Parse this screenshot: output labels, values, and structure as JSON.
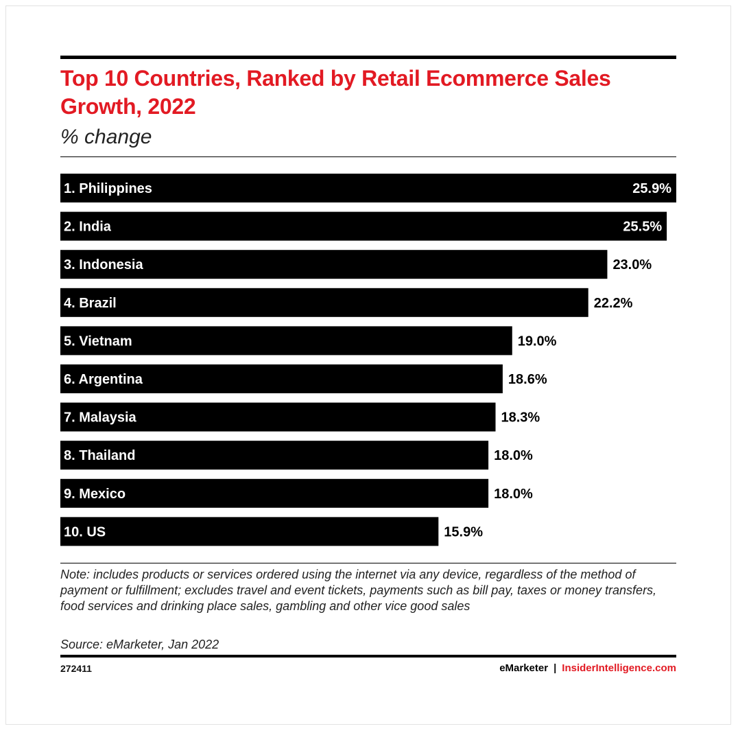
{
  "header": {
    "title": "Top 10 Countries, Ranked by Retail Ecommerce Sales Growth, 2022",
    "subtitle": "% change"
  },
  "chart_data": {
    "type": "bar",
    "orientation": "horizontal",
    "title": "Top 10 Countries, Ranked by Retail Ecommerce Sales Growth, 2022",
    "subtitle": "% change",
    "categories": [
      "1. Philippines",
      "2. India",
      "3. Indonesia",
      "4. Brazil",
      "5. Vietnam",
      "6. Argentina",
      "7. Malaysia",
      "8. Thailand",
      "9. Mexico",
      "10. US"
    ],
    "values": [
      25.9,
      25.5,
      23.0,
      22.2,
      19.0,
      18.6,
      18.3,
      18.0,
      18.0,
      15.9
    ],
    "value_labels": [
      "25.9%",
      "25.5%",
      "23.0%",
      "22.2%",
      "19.0%",
      "18.6%",
      "18.3%",
      "18.0%",
      "18.0%",
      "15.9%"
    ],
    "xlim": [
      0,
      25.9
    ],
    "bar_color": "#000000",
    "grid": false,
    "legend": "none"
  },
  "footer": {
    "note": "Note: includes products or services ordered using the internet via any device, regardless of the method of payment or fulfillment; excludes travel and event tickets, payments such as bill pay, taxes or money transfers, food services and drinking place sales, gambling and other vice good sales",
    "source": "Source: eMarketer, Jan 2022",
    "chart_id": "272411",
    "brand_emarketer": "eMarketer",
    "brand_separator": "|",
    "brand_insider": "InsiderIntelligence.com"
  },
  "colors": {
    "title": "#e21a23",
    "accent": "#e21a23",
    "bar": "#000000"
  }
}
